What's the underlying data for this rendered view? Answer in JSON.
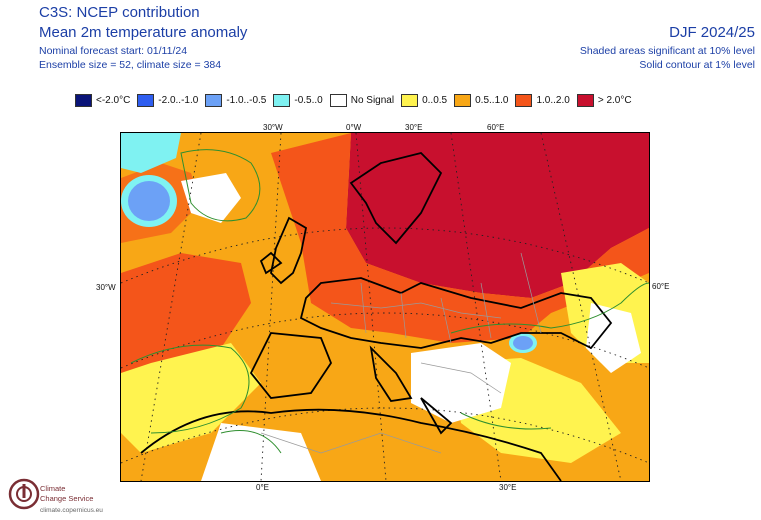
{
  "header": {
    "title_line1": "C3S: NCEP contribution",
    "title_line2": "Mean 2m temperature anomaly",
    "info_line1": "Nominal forecast start: 01/11/24",
    "info_line2": "Ensemble size = 52, climate size = 384",
    "period": "DJF 2024/25",
    "sig_line1": "Shaded areas significant at 10% level",
    "sig_line2": "Solid contour at 1% level"
  },
  "legend": [
    {
      "label": "<-2.0°C",
      "color": "#0a1478"
    },
    {
      "label": "-2.0..-1.0",
      "color": "#2f5ef0"
    },
    {
      "label": "-1.0..-0.5",
      "color": "#6ca1f6"
    },
    {
      "label": "-0.5..0",
      "color": "#7ff2f2"
    },
    {
      "label": "No Signal",
      "color": "#ffffff"
    },
    {
      "label": "0..0.5",
      "color": "#fff34f"
    },
    {
      "label": "0.5..1.0",
      "color": "#f8a716"
    },
    {
      "label": "1.0..2.0",
      "color": "#f4551a"
    },
    {
      "label": "> 2.0°C",
      "color": "#c8102e"
    }
  ],
  "axis_ticks": {
    "top": [
      "30°W",
      "0°W",
      "30°E",
      "60°E"
    ],
    "left": "30°W",
    "right": "60°E",
    "bottom": [
      "0°E",
      "30°E"
    ]
  },
  "logo": {
    "line1": "Climate",
    "line2": "Change Service",
    "url": "climate.copernicus.eu"
  }
}
